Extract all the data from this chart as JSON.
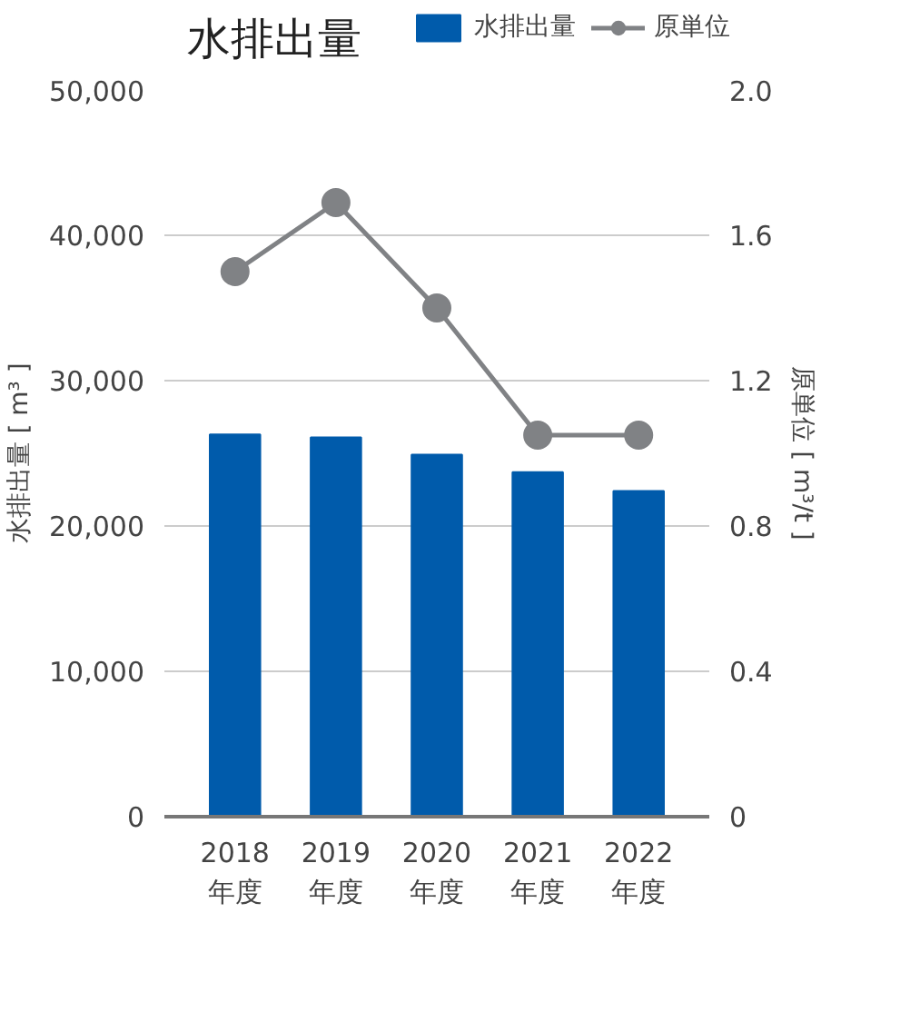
{
  "chart_data": {
    "type": "bar",
    "title": "水排出量",
    "categories": [
      "2018\n年度",
      "2019\n年度",
      "2020\n年度",
      "2021\n年度",
      "2022\n年度"
    ],
    "series": [
      {
        "name": "水排出量",
        "color": "#005bab",
        "values": [
          26300,
          26100,
          24900,
          23700,
          22400
        ]
      },
      {
        "name": "原単位",
        "type": "line",
        "axis": "y2",
        "color": "#808285",
        "marker": "circle",
        "values": [
          1.5,
          1.69,
          1.4,
          1.05,
          1.05
        ]
      }
    ],
    "ylabel": "水排出量 [ m³ ]",
    "y2label": "原単位 [ m³/t ]",
    "ylim": [
      0,
      50000
    ],
    "yticks": [
      {
        "value": 0,
        "label": "0"
      },
      {
        "value": 10000,
        "label": "10,000"
      },
      {
        "value": 20000,
        "label": "20,000"
      },
      {
        "value": 30000,
        "label": "30,000"
      },
      {
        "value": 40000,
        "label": "40,000"
      },
      {
        "value": 50000,
        "label": "50,000"
      }
    ],
    "y2lim": [
      0,
      2.0
    ],
    "y2ticks": [
      {
        "value": 0,
        "label": "0"
      },
      {
        "value": 0.4,
        "label": "0.4"
      },
      {
        "value": 0.8,
        "label": "0.8"
      },
      {
        "value": 1.2,
        "label": "1.2"
      },
      {
        "value": 1.6,
        "label": "1.6"
      },
      {
        "value": 2.0,
        "label": "2.0"
      }
    ],
    "grid": "y",
    "legend": "top right"
  }
}
